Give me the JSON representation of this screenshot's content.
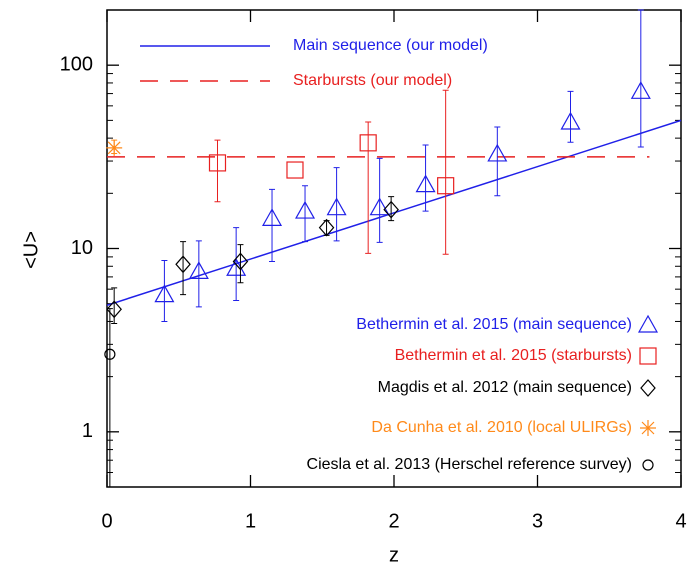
{
  "chart_data": {
    "type": "scatter",
    "log_y": true,
    "xlabel": "z",
    "ylabel": "<U>",
    "xlim": [
      0,
      4
    ],
    "ylim": [
      0.5,
      200
    ],
    "xticks": [
      0,
      1,
      2,
      3,
      4
    ],
    "yticks": [
      1,
      10,
      100
    ],
    "yminorticks": [
      0.6,
      0.7,
      0.8,
      0.9,
      2,
      3,
      4,
      5,
      6,
      7,
      8,
      9,
      20,
      30,
      40,
      50,
      60,
      70,
      80,
      90,
      200
    ],
    "series": [
      {
        "name": "Main sequence (our model)",
        "type": "line",
        "color": "#2020e8",
        "dashed": false,
        "x": [
          0,
          4
        ],
        "values": [
          4.9,
          50
        ]
      },
      {
        "name": "Starbursts (our model)",
        "type": "line",
        "color": "#e82020",
        "dashed": true,
        "x": [
          0,
          3.78
        ],
        "values": [
          31.6,
          31.6
        ]
      },
      {
        "name": "Bethermin et al. 2015 (main sequence)",
        "type": "scatter",
        "marker": "triangle",
        "color": "#2020e8",
        "x": [
          0.4,
          0.64,
          0.9,
          1.15,
          1.38,
          1.6,
          1.9,
          2.22,
          2.72,
          3.23,
          3.72
        ],
        "values": [
          5.6,
          7.5,
          7.8,
          14.6,
          16,
          16.7,
          16.7,
          22.3,
          32.8,
          49,
          72
        ],
        "low": [
          4.0,
          4.8,
          5.2,
          8.5,
          10.9,
          11,
          10.8,
          16,
          19.4,
          38,
          35.8
        ],
        "high": [
          8.6,
          11,
          13,
          21,
          22,
          27.6,
          31,
          36.7,
          46,
          72,
          200
        ]
      },
      {
        "name": "Bethermin et al. 2015 (starbursts)",
        "type": "scatter",
        "marker": "square",
        "color": "#e82020",
        "x": [
          0.77,
          1.31,
          1.82,
          2.36
        ],
        "values": [
          29.3,
          26.8,
          37.7,
          22
        ],
        "low": [
          18,
          null,
          9.4,
          9.3
        ],
        "high": [
          39,
          null,
          49,
          73
        ]
      },
      {
        "name": "Magdis et al. 2012 (main sequence)",
        "type": "scatter",
        "marker": "diamond",
        "color": "#000000",
        "x": [
          0.05,
          0.53,
          0.93,
          1.53,
          1.98
        ],
        "values": [
          4.66,
          8.2,
          8.5,
          13,
          16.3
        ],
        "low": [
          3.9,
          5.6,
          6.5,
          11.8,
          14.2
        ],
        "high": [
          6.1,
          10.9,
          10.5,
          14.2,
          19.2
        ]
      },
      {
        "name": "Da Cunha et al. 2010 (local ULIRGs)",
        "type": "scatter",
        "marker": "asterisk",
        "color": "#ff8a1a",
        "x": [
          0.05
        ],
        "values": [
          35.4
        ],
        "low": [
          33
        ],
        "high": [
          39
        ]
      },
      {
        "name": "Ciesla et al. 2013 (Herschel reference survey)",
        "type": "scatter",
        "marker": "circle",
        "color": "#000000",
        "x": [
          0.02
        ],
        "values": [
          2.65
        ],
        "low": [
          0.5
        ],
        "high": [
          4.7
        ]
      }
    ]
  }
}
